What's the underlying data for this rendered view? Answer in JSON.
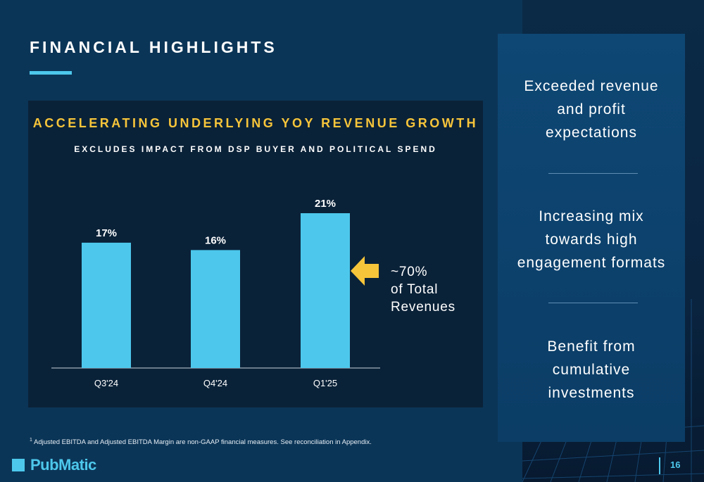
{
  "page": {
    "title": "FINANCIAL HIGHLIGHTS",
    "footnote_mark": "1",
    "footnote": "Adjusted EBITDA and Adjusted EBITDA Margin are non-GAAP financial measures. See reconciliation in Appendix.",
    "logo": "PubMatic",
    "page_number": "16"
  },
  "chart_data": {
    "type": "bar",
    "title": "ACCELERATING UNDERLYING YOY REVENUE GROWTH",
    "subtitle": "EXCLUDES IMPACT FROM DSP BUYER AND POLITICAL SPEND",
    "categories": [
      "Q3'24",
      "Q4'24",
      "Q1'25"
    ],
    "values": [
      17,
      16,
      21
    ],
    "value_labels": [
      "17%",
      "16%",
      "21%"
    ],
    "unit": "%",
    "ylim": [
      0,
      21
    ],
    "grid": false,
    "bar_color": "#4dc8ec"
  },
  "callout": {
    "lines": [
      "~70%",
      "of Total",
      "Revenues"
    ],
    "arrow_color": "#f7c53a"
  },
  "highlights": [
    {
      "lines": [
        "Exceeded revenue",
        "and profit",
        "expectations"
      ]
    },
    {
      "lines": [
        "Increasing mix",
        "towards high",
        "engagement formats"
      ]
    },
    {
      "lines": [
        "Benefit from",
        "cumulative",
        "investments"
      ]
    }
  ],
  "colors": {
    "background": "#0b3557",
    "accent": "#4dc8ec",
    "gold": "#f7c53a"
  }
}
